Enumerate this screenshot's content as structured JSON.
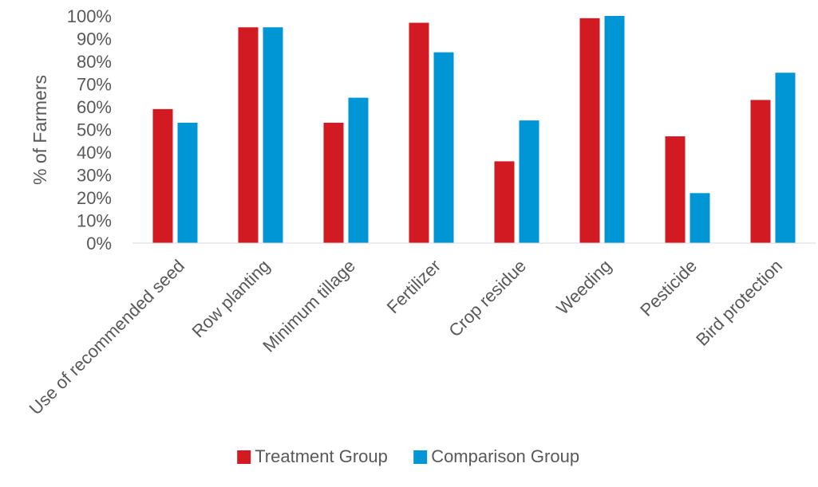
{
  "chart_data": {
    "type": "bar",
    "title": "",
    "xlabel": "",
    "ylabel": "% of Farmers",
    "ylim": [
      0,
      100
    ],
    "yticks": [
      "0%",
      "10%",
      "20%",
      "30%",
      "40%",
      "50%",
      "60%",
      "70%",
      "80%",
      "90%",
      "100%"
    ],
    "grid": false,
    "legend_position": "bottom",
    "categories": [
      "Use of recommended seed",
      "Row planting",
      "Minimum tillage",
      "Fertilizer",
      "Crop residue",
      "Weeding",
      "Pesticide",
      "Bird protection"
    ],
    "series": [
      {
        "name": "Treatment Group",
        "color": "#d11a21",
        "values": [
          59,
          95,
          53,
          97,
          36,
          99,
          47,
          63
        ]
      },
      {
        "name": "Comparison Group",
        "color": "#0096d6",
        "values": [
          53,
          95,
          64,
          84,
          54,
          100,
          22,
          75
        ]
      }
    ]
  }
}
